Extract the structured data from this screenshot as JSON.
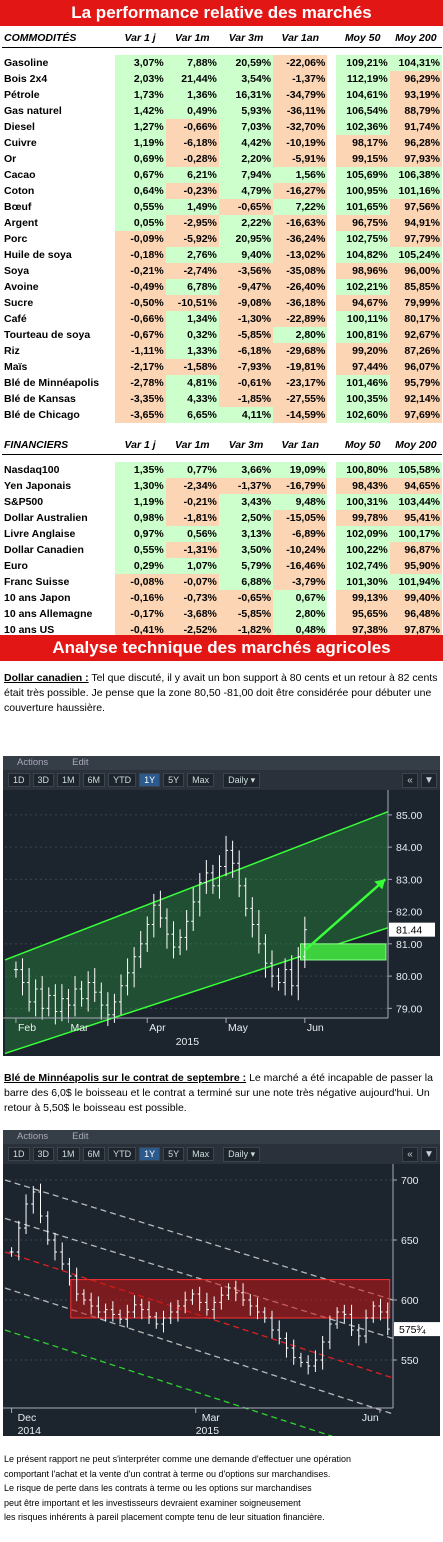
{
  "perf_title": "La performance relative des marchés",
  "headers": [
    "Var 1 j",
    "Var 1m",
    "Var 3m",
    "Var 1an",
    "Moy 50",
    "Moy 200"
  ],
  "commodities_header": "COMMODITÉS",
  "commodities": [
    {
      "name": "Gasoline",
      "v": [
        "3,07%",
        "7,88%",
        "20,59%",
        "-22,06%",
        "109,21%",
        "104,31%"
      ]
    },
    {
      "name": "Bois 2x4",
      "v": [
        "2,03%",
        "21,44%",
        "3,54%",
        "-1,37%",
        "112,19%",
        "96,29%"
      ]
    },
    {
      "name": "Pétrole",
      "v": [
        "1,73%",
        "1,36%",
        "16,31%",
        "-34,79%",
        "104,61%",
        "93,19%"
      ]
    },
    {
      "name": "Gas naturel",
      "v": [
        "1,42%",
        "0,49%",
        "5,93%",
        "-36,11%",
        "106,54%",
        "88,79%"
      ]
    },
    {
      "name": "Diesel",
      "v": [
        "1,27%",
        "-0,66%",
        "7,03%",
        "-32,70%",
        "102,36%",
        "91,74%"
      ]
    },
    {
      "name": "Cuivre",
      "v": [
        "1,19%",
        "-6,18%",
        "4,42%",
        "-10,19%",
        "98,17%",
        "96,28%"
      ]
    },
    {
      "name": "Or",
      "v": [
        "0,69%",
        "-0,28%",
        "2,20%",
        "-5,91%",
        "99,15%",
        "97,93%"
      ]
    },
    {
      "name": "Cacao",
      "v": [
        "0,67%",
        "6,21%",
        "7,94%",
        "1,56%",
        "105,69%",
        "106,38%"
      ]
    },
    {
      "name": "Coton",
      "v": [
        "0,64%",
        "-0,23%",
        "4,79%",
        "-16,27%",
        "100,95%",
        "101,16%"
      ]
    },
    {
      "name": "Bœuf",
      "v": [
        "0,55%",
        "1,49%",
        "-0,65%",
        "7,22%",
        "101,65%",
        "97,56%"
      ]
    },
    {
      "name": "Argent",
      "v": [
        "0,05%",
        "-2,95%",
        "2,22%",
        "-16,63%",
        "96,75%",
        "94,91%"
      ]
    },
    {
      "name": "Porc",
      "v": [
        "-0,09%",
        "-5,92%",
        "20,95%",
        "-36,24%",
        "102,75%",
        "97,79%"
      ]
    },
    {
      "name": "Huile de soya",
      "v": [
        "-0,18%",
        "2,76%",
        "9,40%",
        "-13,02%",
        "104,82%",
        "105,24%"
      ]
    },
    {
      "name": "Soya",
      "v": [
        "-0,21%",
        "-2,74%",
        "-3,56%",
        "-35,08%",
        "98,96%",
        "96,00%"
      ]
    },
    {
      "name": "Avoine",
      "v": [
        "-0,49%",
        "6,78%",
        "-9,47%",
        "-26,40%",
        "102,21%",
        "85,85%"
      ]
    },
    {
      "name": "Sucre",
      "v": [
        "-0,50%",
        "-10,51%",
        "-9,08%",
        "-36,18%",
        "94,67%",
        "79,99%"
      ]
    },
    {
      "name": "Café",
      "v": [
        "-0,66%",
        "1,34%",
        "-1,30%",
        "-22,89%",
        "100,11%",
        "80,17%"
      ]
    },
    {
      "name": "Tourteau de soya",
      "v": [
        "-0,67%",
        "0,32%",
        "-5,85%",
        "2,80%",
        "100,81%",
        "92,67%"
      ]
    },
    {
      "name": "Riz",
      "v": [
        "-1,11%",
        "1,33%",
        "-6,18%",
        "-29,68%",
        "99,20%",
        "87,26%"
      ]
    },
    {
      "name": "Maïs",
      "v": [
        "-2,17%",
        "-1,58%",
        "-7,93%",
        "-19,81%",
        "97,44%",
        "96,07%"
      ]
    },
    {
      "name": "Blé de Minnéapolis",
      "v": [
        "-2,78%",
        "4,81%",
        "-0,61%",
        "-23,17%",
        "101,46%",
        "95,79%"
      ]
    },
    {
      "name": "Blé de Kansas",
      "v": [
        "-3,35%",
        "4,33%",
        "-1,85%",
        "-27,55%",
        "100,35%",
        "92,14%"
      ]
    },
    {
      "name": "Blé de Chicago",
      "v": [
        "-3,65%",
        "6,65%",
        "4,11%",
        "-14,59%",
        "102,60%",
        "97,69%"
      ]
    }
  ],
  "financials_header": "FINANCIERS",
  "financials": [
    {
      "name": "Nasdaq100",
      "v": [
        "1,35%",
        "0,77%",
        "3,66%",
        "19,09%",
        "100,80%",
        "105,58%"
      ]
    },
    {
      "name": "Yen Japonais",
      "v": [
        "1,30%",
        "-2,34%",
        "-1,37%",
        "-16,79%",
        "98,43%",
        "94,65%"
      ]
    },
    {
      "name": "S&P500",
      "v": [
        "1,19%",
        "-0,21%",
        "3,43%",
        "9,48%",
        "100,31%",
        "103,44%"
      ]
    },
    {
      "name": "Dollar Australien",
      "v": [
        "0,98%",
        "-1,81%",
        "2,50%",
        "-15,05%",
        "99,78%",
        "95,41%"
      ]
    },
    {
      "name": "Livre Anglaise",
      "v": [
        "0,97%",
        "0,56%",
        "3,13%",
        "-6,89%",
        "102,09%",
        "100,17%"
      ]
    },
    {
      "name": "Dollar Canadien",
      "v": [
        "0,55%",
        "-1,31%",
        "3,50%",
        "-10,24%",
        "100,22%",
        "96,87%"
      ]
    },
    {
      "name": "Euro",
      "v": [
        "0,29%",
        "1,07%",
        "5,79%",
        "-16,46%",
        "102,74%",
        "95,90%"
      ]
    },
    {
      "name": "Franc Suisse",
      "v": [
        "-0,08%",
        "-0,07%",
        "6,88%",
        "-3,79%",
        "101,30%",
        "101,94%"
      ]
    },
    {
      "name": "10 ans Japon",
      "v": [
        "-0,16%",
        "-0,73%",
        "-0,65%",
        "0,67%",
        "99,13%",
        "99,40%"
      ]
    },
    {
      "name": "10 ans Allemagne",
      "v": [
        "-0,17%",
        "-3,68%",
        "-5,85%",
        "2,80%",
        "95,65%",
        "96,48%"
      ]
    },
    {
      "name": "10 ans US",
      "v": [
        "-0,41%",
        "-2,52%",
        "-1,82%",
        "0,48%",
        "97,38%",
        "97,87%"
      ]
    },
    {
      "name": "Dollar américain",
      "v": [
        "-0,53%",
        "0,05%",
        "-4,29%",
        "17,32%",
        "98,46%",
        "103,20%"
      ]
    }
  ],
  "analysis_title": "Analyse technique des marchés agricoles",
  "cad": {
    "label": "Dollar canadien :",
    "text": " Tel que discuté, il y avait un bon support à 80 cents et un retour à 82 cents était très possible. Je pense que la zone 80,50 -81,00 doit être considérée pour débuter une couverture haussière."
  },
  "mw": {
    "label": "Blé de Minnéapolis sur le contrat de septembre :",
    "text": " Le marché a été incapable de passer la barre des 6,0$ le boisseau et le contrat a terminé sur une note très négative aujourd'hui. Un retour à 5,50$ le boisseau est possible."
  },
  "chart_ui": {
    "menu": [
      "Actions",
      "Edit"
    ],
    "ranges": [
      "1D",
      "3D",
      "1M",
      "6M",
      "YTD",
      "1Y",
      "5Y",
      "Max"
    ],
    "active_range": "1Y",
    "dropdown": "Daily",
    "icons": [
      "double-chevron-left-icon",
      "triangle-down-icon"
    ]
  },
  "chart_data": [
    {
      "type": "bar",
      "subtype": "ohlc",
      "x_ticks": [
        "Feb",
        "Mar",
        "Apr",
        "May",
        "Jun"
      ],
      "x_year": "2015",
      "y_ticks": [
        "79.00",
        "80.00",
        "81.00",
        "82.00",
        "83.00",
        "84.00",
        "85.00"
      ],
      "ylim": [
        78.7,
        85.4
      ],
      "last_value": "81.44",
      "close_series": [
        80.2,
        79.8,
        79.2,
        79.6,
        79.0,
        79.4,
        78.9,
        79.3,
        79.1,
        79.6,
        79.3,
        79.8,
        79.5,
        79.1,
        78.8,
        79.2,
        79.7,
        80.1,
        80.6,
        81.0,
        81.6,
        82.2,
        81.8,
        81.3,
        80.9,
        81.2,
        81.7,
        82.3,
        82.9,
        83.2,
        82.8,
        83.4,
        83.9,
        83.5,
        82.8,
        82.1,
        81.6,
        81.0,
        80.4,
        80.0,
        79.8,
        80.2,
        79.7,
        80.6,
        81.44
      ],
      "annotations": [
        {
          "kind": "channel-upper",
          "points": [
            [
              0,
              80.5
            ],
            [
              70,
              85.1
            ]
          ]
        },
        {
          "kind": "channel-lower",
          "points": [
            [
              0,
              77.6
            ],
            [
              70,
              81.5
            ]
          ]
        },
        {
          "kind": "zone",
          "y": [
            80.5,
            81.0
          ]
        },
        {
          "kind": "arrow",
          "from": [
            50,
            80.8
          ],
          "to": [
            70,
            83.0
          ]
        }
      ]
    },
    {
      "type": "bar",
      "subtype": "ohlc",
      "x_ticks": [
        "Dec",
        "Mar",
        "Jun"
      ],
      "x_years": [
        "2014",
        "2015"
      ],
      "y_ticks": [
        "550",
        "600",
        "650",
        "700"
      ],
      "ylim": [
        510,
        710
      ],
      "last_value": "575³⁄₄",
      "close_series": [
        640,
        660,
        680,
        690,
        670,
        650,
        640,
        630,
        620,
        605,
        600,
        595,
        590,
        592,
        588,
        584,
        590,
        596,
        592,
        586,
        580,
        585,
        590,
        595,
        600,
        605,
        598,
        592,
        598,
        604,
        610,
        606,
        600,
        595,
        590,
        585,
        575,
        568,
        560,
        552,
        548,
        545,
        550,
        565,
        580,
        590,
        588,
        575,
        570,
        585,
        595,
        590,
        575.75
      ],
      "annotations": [
        {
          "kind": "resistance-zone",
          "y": [
            585,
            617
          ]
        },
        {
          "kind": "trendlines",
          "count": 5,
          "slope": "down"
        }
      ]
    }
  ],
  "disclaimer": [
    "Le présent rapport ne peut s'interpréter comme une demande d'effectuer une opération",
    "comportant l'achat et la vente d'un contrat à terme ou d'options sur marchandises.",
    "Le risque de perte dans les contrats à terme ou les options sur marchandises",
    "peut être important et les investisseurs devraient examiner soigneusement",
    "les risques inhérents à pareil placement compte tenu de leur situation financière."
  ]
}
